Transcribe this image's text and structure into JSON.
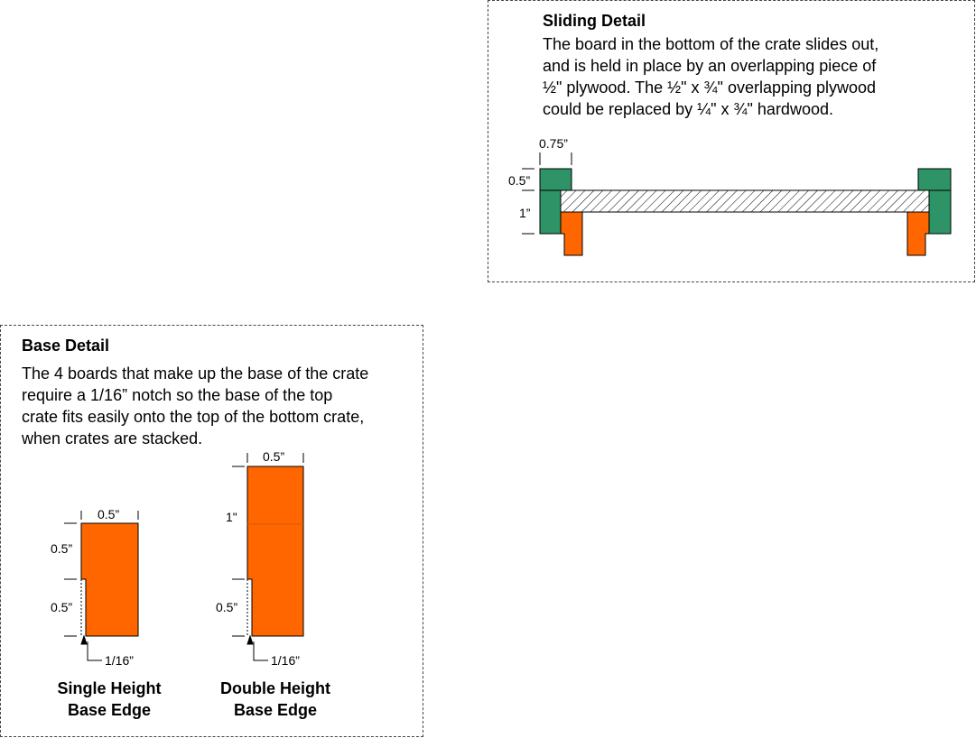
{
  "sliding_detail": {
    "title": "Sliding Detail",
    "lines": [
      "The board in the bottom of the crate slides out,",
      "and is held in place by an overlapping piece of",
      "½\" plywood. The ½\" x ¾\" overlapping plywood",
      "could be replaced by ¼\" x ¾\" hardwood."
    ],
    "dimensions": {
      "width": "0.75”",
      "top": "0.5”",
      "middle": "1”"
    }
  },
  "base_detail": {
    "title": "Base Detail",
    "lines": [
      "The 4 boards that make up the base of the crate",
      "require a 1/16” notch so the base of the top",
      "crate fits easily onto the top of the bottom crate,",
      "when crates are stacked."
    ],
    "single": {
      "width_label": "0.5”",
      "upper_label": "0.5”",
      "lower_label": "0.5”",
      "notch_label": "1/16”",
      "caption_line1": "Single Height",
      "caption_line2": "Base Edge"
    },
    "double": {
      "width_label": "0.5”",
      "upper_label": "1\"",
      "lower_label": "0.5”",
      "notch_label": "1/16”",
      "caption_line1": "Double Height",
      "caption_line2": "Base Edge"
    }
  },
  "colors": {
    "green": "#2e9367",
    "orange": "#ff6600",
    "outline": "#000000"
  }
}
